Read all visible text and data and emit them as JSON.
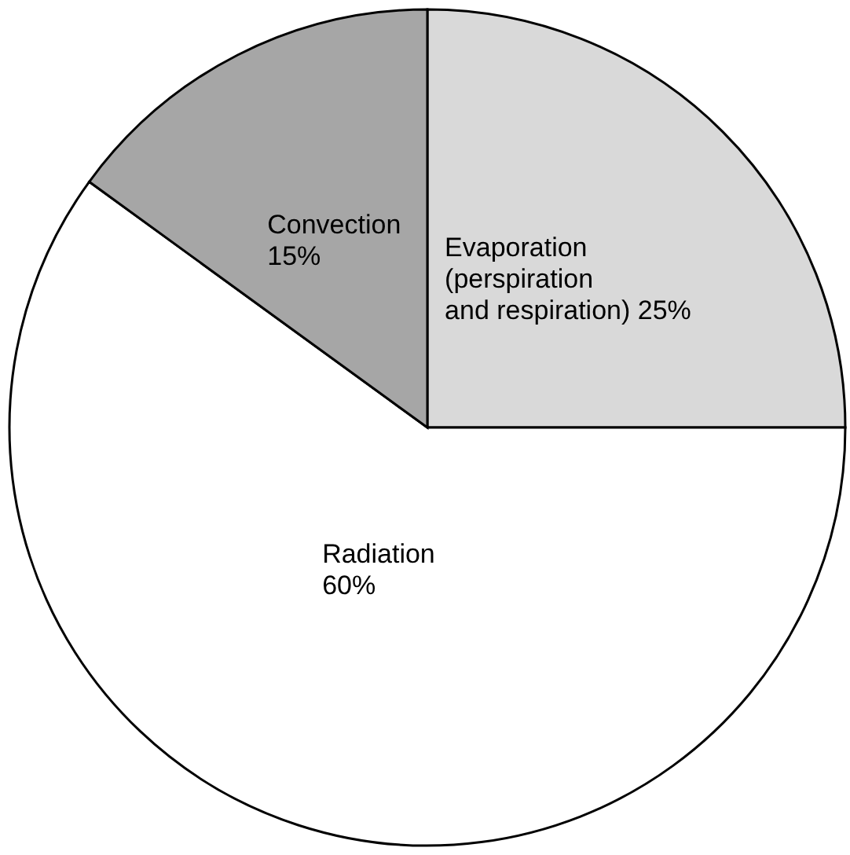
{
  "chart_data": {
    "type": "pie",
    "categories": [
      "Evaporation (perspiration and respiration)",
      "Radiation",
      "Convection"
    ],
    "values": [
      25,
      60,
      15
    ],
    "value_labels": [
      "25%",
      "60%",
      "15%"
    ],
    "colors": [
      "#d9d9d9",
      "#ffffff",
      "#a6a6a6"
    ]
  }
}
